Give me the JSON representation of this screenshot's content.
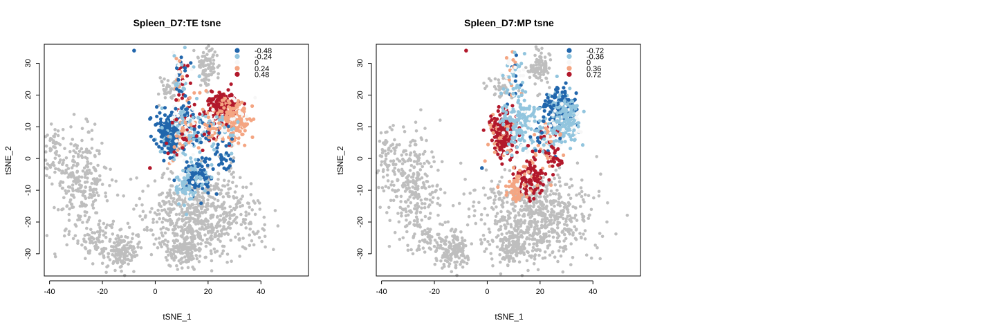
{
  "chart_data": [
    {
      "type": "scatter",
      "title": "Spleen_D7:TE tsne",
      "xlabel": "tSNE_1",
      "ylabel": "tSNE_2",
      "xlim": [
        -42,
        58
      ],
      "ylim": [
        -37,
        36
      ],
      "x_ticks": [
        -40,
        -20,
        0,
        20,
        40
      ],
      "y_ticks": [
        -30,
        -20,
        -10,
        0,
        10,
        20,
        30
      ],
      "legend": {
        "position": "top-right",
        "entries": [
          {
            "label": "-0.48",
            "color": "#2166ac"
          },
          {
            "label": "-0.24",
            "color": "#92c5de"
          },
          {
            "label": "0",
            "color": "#f7f7f7"
          },
          {
            "label": "0.24",
            "color": "#f4a582"
          },
          {
            "label": "0.48",
            "color": "#b2182b"
          }
        ]
      },
      "grey_color": "#bebebe",
      "clusters": [
        {
          "x": -28,
          "y": -8,
          "sx": 5,
          "sy": 8,
          "n": 260,
          "cls": "grey"
        },
        {
          "x": -38,
          "y": 2,
          "sx": 2,
          "sy": 4,
          "n": 50,
          "cls": "grey"
        },
        {
          "x": -22,
          "y": -25,
          "sx": 5,
          "sy": 2.5,
          "n": 60,
          "cls": "grey"
        },
        {
          "x": -13,
          "y": -29,
          "sx": 3,
          "sy": 3,
          "n": 140,
          "cls": "grey"
        },
        {
          "x": 18,
          "y": -18,
          "sx": 11,
          "sy": 7,
          "n": 650,
          "cls": "grey"
        },
        {
          "x": 10,
          "y": -28,
          "sx": 4,
          "sy": 3,
          "n": 120,
          "cls": "grey"
        },
        {
          "x": 20,
          "y": 29,
          "sx": 2,
          "sy": 3,
          "n": 90,
          "cls": "grey"
        },
        {
          "x": 5,
          "y": 22,
          "sx": 2.5,
          "sy": 2,
          "n": 40,
          "cls": "grey"
        },
        {
          "x": 10,
          "y": 27,
          "sx": 2,
          "sy": 4,
          "n": 50,
          "cls": "mixed"
        },
        {
          "x": 5,
          "y": 8,
          "sx": 2.5,
          "sy": 3.5,
          "n": 210,
          "cls": 0
        },
        {
          "x": 11,
          "y": 10,
          "sx": 3,
          "sy": 6,
          "n": 220,
          "cls": "mixed"
        },
        {
          "x": 26,
          "y": 16,
          "sx": 3,
          "sy": 2.5,
          "n": 220,
          "cls": 4
        },
        {
          "x": 30,
          "y": 12,
          "sx": 2.5,
          "sy": 3,
          "n": 180,
          "cls": 3
        },
        {
          "x": 22,
          "y": 9,
          "sx": 4,
          "sy": 3,
          "n": 120,
          "cls": "mixed"
        },
        {
          "x": 16,
          "y": -6,
          "sx": 3,
          "sy": 3,
          "n": 110,
          "cls": 0
        },
        {
          "x": 11,
          "y": -9,
          "sx": 2,
          "sy": 2.5,
          "n": 60,
          "cls": 1
        },
        {
          "x": 26,
          "y": 0,
          "sx": 2,
          "sy": 2,
          "n": 25,
          "cls": 0
        }
      ],
      "points": [
        {
          "x": -8,
          "y": 34,
          "cls": 0
        },
        {
          "x": -2,
          "y": -3,
          "cls": 4
        }
      ]
    },
    {
      "type": "scatter",
      "title": "Spleen_D7:MP tsne",
      "xlabel": "tSNE_1",
      "ylabel": "tSNE_2",
      "xlim": [
        -42,
        58
      ],
      "ylim": [
        -37,
        36
      ],
      "x_ticks": [
        -40,
        -20,
        0,
        20,
        40
      ],
      "y_ticks": [
        -30,
        -20,
        -10,
        0,
        10,
        20,
        30
      ],
      "legend": {
        "position": "top-right",
        "entries": [
          {
            "label": "-0.72",
            "color": "#2166ac"
          },
          {
            "label": "-0.36",
            "color": "#92c5de"
          },
          {
            "label": "0",
            "color": "#f7f7f7"
          },
          {
            "label": "0.36",
            "color": "#f4a582"
          },
          {
            "label": "0.72",
            "color": "#b2182b"
          }
        ]
      },
      "grey_color": "#bebebe",
      "clusters": [
        {
          "x": -28,
          "y": -8,
          "sx": 5,
          "sy": 8,
          "n": 260,
          "cls": "grey"
        },
        {
          "x": -38,
          "y": 2,
          "sx": 2,
          "sy": 4,
          "n": 50,
          "cls": "grey"
        },
        {
          "x": -22,
          "y": -25,
          "sx": 5,
          "sy": 2.5,
          "n": 60,
          "cls": "grey"
        },
        {
          "x": -13,
          "y": -29,
          "sx": 3,
          "sy": 3,
          "n": 140,
          "cls": "grey"
        },
        {
          "x": 18,
          "y": -18,
          "sx": 11,
          "sy": 7,
          "n": 650,
          "cls": "grey"
        },
        {
          "x": 10,
          "y": -28,
          "sx": 4,
          "sy": 3,
          "n": 120,
          "cls": "grey"
        },
        {
          "x": 20,
          "y": 29,
          "sx": 2,
          "sy": 3,
          "n": 90,
          "cls": "grey"
        },
        {
          "x": 5,
          "y": 22,
          "sx": 2.5,
          "sy": 2,
          "n": 40,
          "cls": "grey"
        },
        {
          "x": 10,
          "y": 27,
          "sx": 2,
          "sy": 4,
          "n": 50,
          "cls": "cool"
        },
        {
          "x": 6,
          "y": 8,
          "sx": 2.5,
          "sy": 3.5,
          "n": 210,
          "cls": 4
        },
        {
          "x": 12,
          "y": 12,
          "sx": 3,
          "sy": 5,
          "n": 160,
          "cls": 1
        },
        {
          "x": 28,
          "y": 16,
          "sx": 3,
          "sy": 2.5,
          "n": 220,
          "cls": 0
        },
        {
          "x": 30,
          "y": 11,
          "sx": 2.5,
          "sy": 3,
          "n": 180,
          "cls": 1
        },
        {
          "x": 22,
          "y": 7,
          "sx": 3,
          "sy": 3,
          "n": 100,
          "cls": "mixed"
        },
        {
          "x": 16,
          "y": -6,
          "sx": 3,
          "sy": 3,
          "n": 110,
          "cls": 4
        },
        {
          "x": 11,
          "y": -9,
          "sx": 2,
          "sy": 2.5,
          "n": 60,
          "cls": 3
        },
        {
          "x": 26,
          "y": 0,
          "sx": 2,
          "sy": 2,
          "n": 25,
          "cls": 4
        }
      ],
      "points": [
        {
          "x": -8,
          "y": 34,
          "cls": 4
        },
        {
          "x": -2,
          "y": -3,
          "cls": 0
        }
      ]
    }
  ]
}
